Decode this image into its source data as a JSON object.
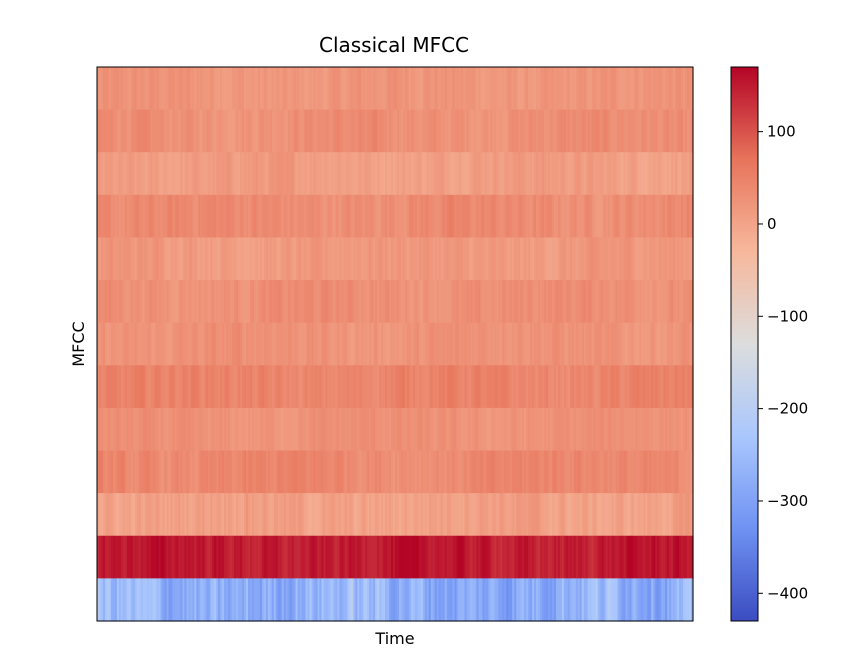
{
  "chart_data": {
    "type": "heatmap",
    "title": "Classical MFCC",
    "xlabel": "Time",
    "ylabel": "MFCC",
    "n_coefficients": 13,
    "n_frames": 300,
    "row_means_top_to_bottom": [
      20,
      30,
      10,
      35,
      15,
      30,
      25,
      45,
      25,
      40,
      5,
      150,
      -270
    ],
    "row_variation": [
      14,
      14,
      14,
      16,
      14,
      14,
      14,
      16,
      12,
      16,
      18,
      18,
      55
    ],
    "colorbar": {
      "min": -430,
      "max": 170,
      "ticks": [
        100,
        0,
        -100,
        -200,
        -300,
        -400
      ],
      "tick_labels": [
        "100",
        "0",
        "−100",
        "−200",
        "−300",
        "−400"
      ]
    },
    "colormap": "coolwarm",
    "colormap_stops": [
      "#3b4cc0",
      "#6f92f3",
      "#aac7fd",
      "#dcdddd",
      "#f7b89c",
      "#e7745b",
      "#b40426"
    ],
    "x_ticks_visible": false,
    "y_ticks_visible": false,
    "grid": false
  }
}
